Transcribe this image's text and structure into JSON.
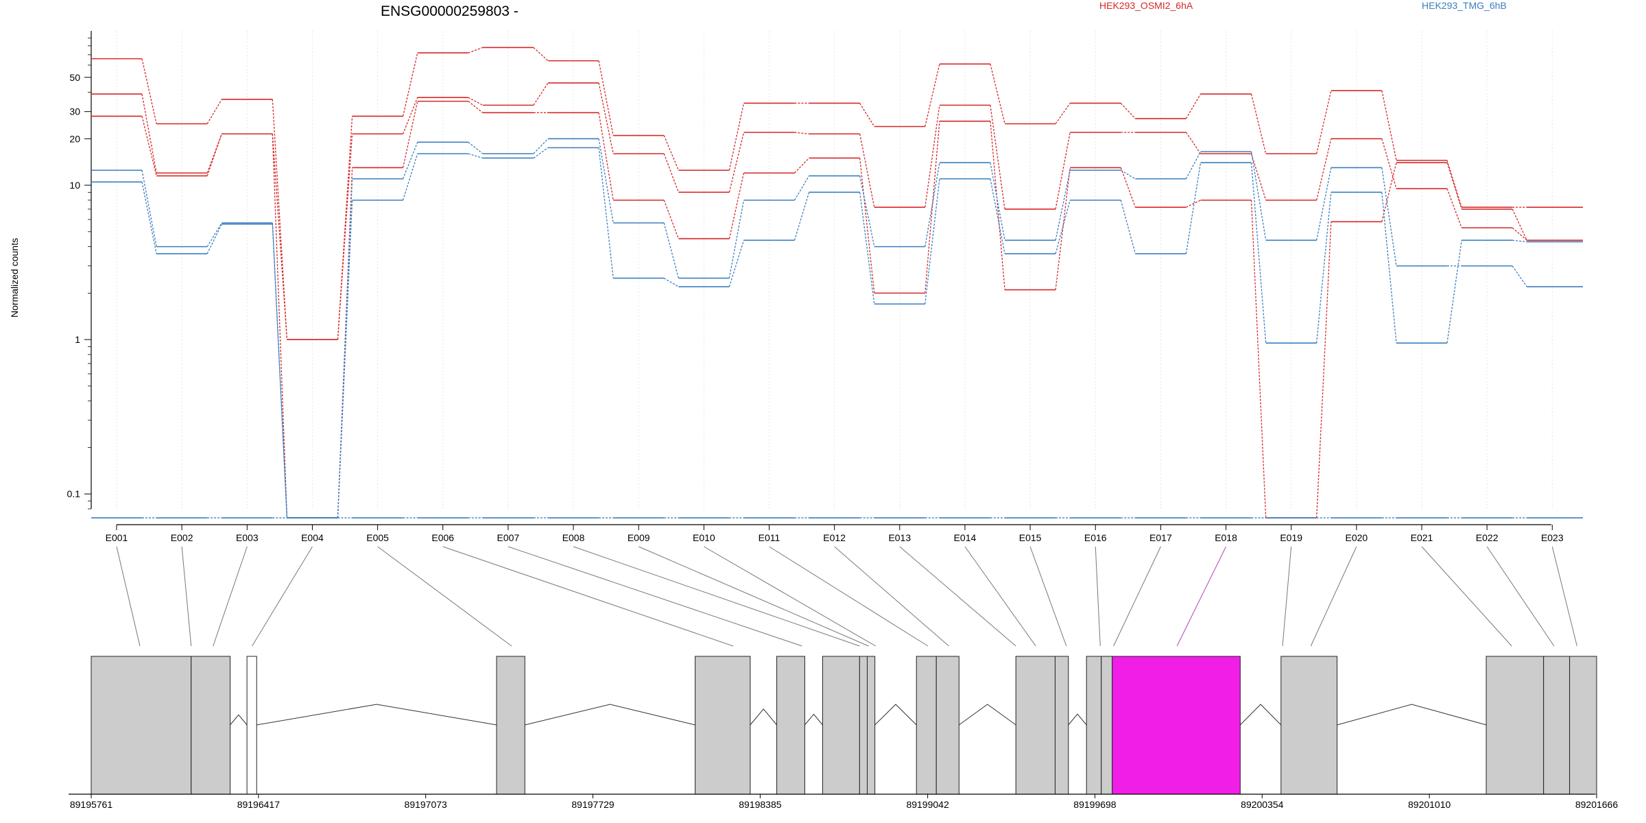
{
  "chart_data": {
    "type": "line",
    "title": "ENSG00000259803 -",
    "ylabel": "Normalized counts",
    "yscale": "log",
    "ylim": [
      0.08,
      100
    ],
    "yticks": [
      "0.1",
      "1",
      "10",
      "20",
      "30",
      "50"
    ],
    "ytick_values": [
      0.1,
      1,
      10,
      20,
      30,
      50
    ],
    "categories": [
      "E001",
      "E002",
      "E003",
      "E004",
      "E005",
      "E006",
      "E007",
      "E008",
      "E009",
      "E010",
      "E011",
      "E012",
      "E013",
      "E014",
      "E015",
      "E016",
      "E017",
      "E018",
      "E019",
      "E020",
      "E021",
      "E022",
      "E023"
    ],
    "highlight_exon": "E018",
    "legend": [
      {
        "name": "HEK293_OSMI2_6hA",
        "color": "#d62728"
      },
      {
        "name": "HEK293_TMG_6hB",
        "color": "#3a7ebf"
      }
    ],
    "series": [
      {
        "group": "HEK293_OSMI2_6hA",
        "color": "#d62728",
        "values": [
          66,
          25,
          36,
          1.0,
          28,
          72,
          78,
          64,
          21,
          12.5,
          34,
          34,
          24,
          61,
          25,
          34,
          27,
          39,
          16,
          41,
          14.5,
          7.2,
          7.2
        ]
      },
      {
        "group": "HEK293_OSMI2_6hA",
        "color": "#d62728",
        "values": [
          39,
          12,
          21.5,
          1.0,
          21.5,
          37,
          33,
          46,
          16,
          9,
          22,
          21.5,
          7.2,
          33,
          7,
          22,
          22,
          16,
          8,
          20,
          9.5,
          5.3,
          4.4
        ]
      },
      {
        "group": "HEK293_OSMI2_6hA",
        "color": "#d62728",
        "values": [
          28,
          11.5,
          21.5,
          0.07,
          13,
          35,
          29.5,
          29.5,
          8,
          4.5,
          12,
          15,
          2.0,
          26,
          2.1,
          13,
          7.2,
          8,
          0.07,
          5.8,
          14,
          7,
          4.4
        ]
      },
      {
        "group": "HEK293_TMG_6hB",
        "color": "#3a7ebf",
        "values": [
          12.5,
          4.0,
          5.7,
          0.07,
          11,
          19,
          16,
          20,
          5.7,
          2.5,
          8,
          11.5,
          4.0,
          14,
          4.4,
          12.5,
          11,
          16.5,
          4.4,
          13,
          3.0,
          3.0,
          2.2
        ]
      },
      {
        "group": "HEK293_TMG_6hB",
        "color": "#3a7ebf",
        "values": [
          10.5,
          3.6,
          5.6,
          0.07,
          8,
          16,
          15,
          17.5,
          2.5,
          2.2,
          4.4,
          9,
          1.7,
          11,
          3.6,
          8,
          3.6,
          14,
          0.95,
          9,
          0.95,
          4.4,
          4.3
        ]
      },
      {
        "group": "HEK293_TMG_6hB",
        "color": "#3a7ebf",
        "values": [
          0.07,
          0.07,
          0.07,
          0.07,
          0.07,
          0.07,
          0.07,
          0.07,
          0.07,
          0.07,
          0.07,
          0.07,
          0.07,
          0.07,
          0.07,
          0.07,
          0.07,
          0.07,
          0.07,
          0.07,
          0.07,
          0.07,
          0.07
        ]
      }
    ],
    "genomic_ticks": [
      "89195761",
      "89196417",
      "89197073",
      "89197729",
      "89198385",
      "89199042",
      "89199698",
      "89200354",
      "89201010",
      "89201666"
    ],
    "genomic_tick_values": [
      89195761,
      89196417,
      89197073,
      89197729,
      89198385,
      89199042,
      89199698,
      89200354,
      89201010,
      89201666
    ],
    "exon_bins": [
      {
        "start": 89195761,
        "end": 89196153
      },
      {
        "start": 89196153,
        "end": 89196306
      },
      {
        "start": 89196372,
        "end": 89196410
      },
      {
        "start": 89197351,
        "end": 89197462
      },
      {
        "start": 89198130,
        "end": 89198346
      },
      {
        "start": 89198450,
        "end": 89198560
      },
      {
        "start": 89198630,
        "end": 89198775
      },
      {
        "start": 89198775,
        "end": 89198805
      },
      {
        "start": 89198805,
        "end": 89198835
      },
      {
        "start": 89198998,
        "end": 89199076
      },
      {
        "start": 89199076,
        "end": 89199165
      },
      {
        "start": 89199388,
        "end": 89199542
      },
      {
        "start": 89199542,
        "end": 89199594
      },
      {
        "start": 89199665,
        "end": 89199723
      },
      {
        "start": 89199723,
        "end": 89199766
      },
      {
        "start": 89199766,
        "end": 89200268
      },
      {
        "start": 89200428,
        "end": 89200648
      },
      {
        "start": 89201233,
        "end": 89201458
      },
      {
        "start": 89201458,
        "end": 89201560
      },
      {
        "start": 89201560,
        "end": 89201666
      }
    ],
    "highlight_bin": {
      "start": 89199766,
      "end": 89200268
    },
    "exon_anchors": [
      89195952,
      89196153,
      89196239,
      89196392,
      89197410,
      89198279,
      89198549,
      89198775,
      89198810,
      89198838,
      89199043,
      89199125,
      89199388,
      89199466,
      89199586,
      89199719,
      89199771,
      89200020,
      89200434,
      89200545,
      89201333,
      89201499,
      89201589
    ]
  }
}
